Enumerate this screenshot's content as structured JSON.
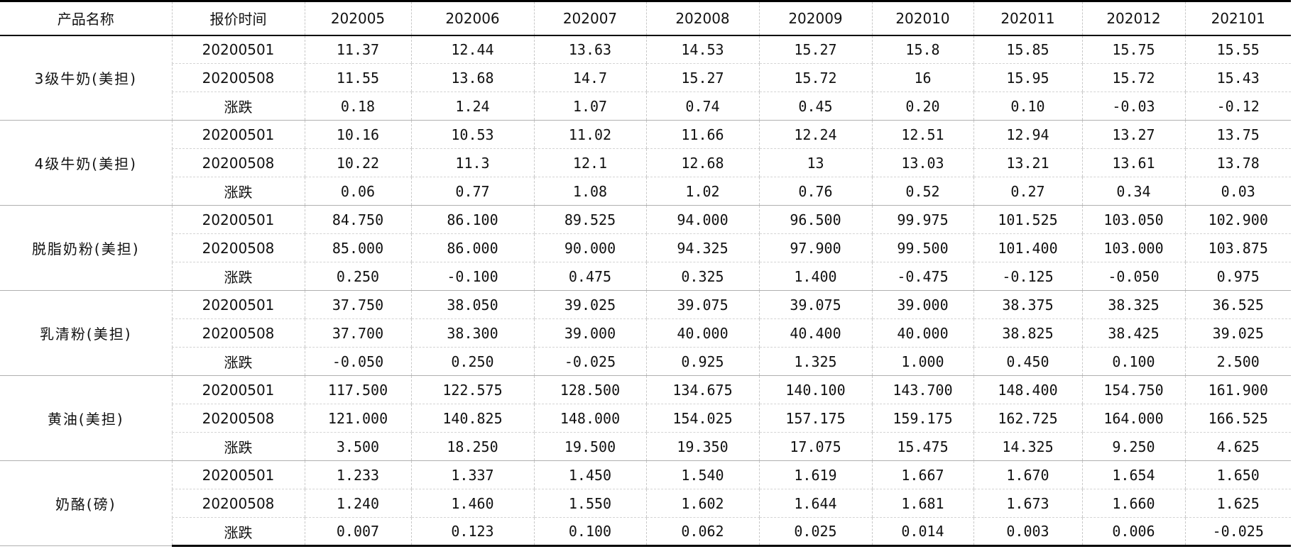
{
  "header": {
    "product_label": "产品名称",
    "time_label": "报价时间",
    "months": [
      "202005",
      "202006",
      "202007",
      "202008",
      "202009",
      "202010",
      "202011",
      "202012",
      "202101"
    ]
  },
  "groups": [
    {
      "product": "3级牛奶(美担)",
      "rows": [
        {
          "time": "20200501",
          "values": [
            "11.37",
            "12.44",
            "13.63",
            "14.53",
            "15.27",
            "15.8",
            "15.85",
            "15.75",
            "15.55"
          ]
        },
        {
          "time": "20200508",
          "values": [
            "11.55",
            "13.68",
            "14.7",
            "15.27",
            "15.72",
            "16",
            "15.95",
            "15.72",
            "15.43"
          ]
        },
        {
          "time": "涨跌",
          "values": [
            "0.18",
            "1.24",
            "1.07",
            "0.74",
            "0.45",
            "0.20",
            "0.10",
            "-0.03",
            "-0.12"
          ]
        }
      ]
    },
    {
      "product": "4级牛奶(美担)",
      "rows": [
        {
          "time": "20200501",
          "values": [
            "10.16",
            "10.53",
            "11.02",
            "11.66",
            "12.24",
            "12.51",
            "12.94",
            "13.27",
            "13.75"
          ]
        },
        {
          "time": "20200508",
          "values": [
            "10.22",
            "11.3",
            "12.1",
            "12.68",
            "13",
            "13.03",
            "13.21",
            "13.61",
            "13.78"
          ]
        },
        {
          "time": "涨跌",
          "values": [
            "0.06",
            "0.77",
            "1.08",
            "1.02",
            "0.76",
            "0.52",
            "0.27",
            "0.34",
            "0.03"
          ]
        }
      ]
    },
    {
      "product": "脱脂奶粉(美担)",
      "rows": [
        {
          "time": "20200501",
          "values": [
            "84.750",
            "86.100",
            "89.525",
            "94.000",
            "96.500",
            "99.975",
            "101.525",
            "103.050",
            "102.900"
          ]
        },
        {
          "time": "20200508",
          "values": [
            "85.000",
            "86.000",
            "90.000",
            "94.325",
            "97.900",
            "99.500",
            "101.400",
            "103.000",
            "103.875"
          ]
        },
        {
          "time": "涨跌",
          "values": [
            "0.250",
            "-0.100",
            "0.475",
            "0.325",
            "1.400",
            "-0.475",
            "-0.125",
            "-0.050",
            "0.975"
          ]
        }
      ]
    },
    {
      "product": "乳清粉(美担)",
      "rows": [
        {
          "time": "20200501",
          "values": [
            "37.750",
            "38.050",
            "39.025",
            "39.075",
            "39.075",
            "39.000",
            "38.375",
            "38.325",
            "36.525"
          ]
        },
        {
          "time": "20200508",
          "values": [
            "37.700",
            "38.300",
            "39.000",
            "40.000",
            "40.400",
            "40.000",
            "38.825",
            "38.425",
            "39.025"
          ]
        },
        {
          "time": "涨跌",
          "values": [
            "-0.050",
            "0.250",
            "-0.025",
            "0.925",
            "1.325",
            "1.000",
            "0.450",
            "0.100",
            "2.500"
          ]
        }
      ]
    },
    {
      "product": "黄油(美担)",
      "rows": [
        {
          "time": "20200501",
          "values": [
            "117.500",
            "122.575",
            "128.500",
            "134.675",
            "140.100",
            "143.700",
            "148.400",
            "154.750",
            "161.900"
          ]
        },
        {
          "time": "20200508",
          "values": [
            "121.000",
            "140.825",
            "148.000",
            "154.025",
            "157.175",
            "159.175",
            "162.725",
            "164.000",
            "166.525"
          ]
        },
        {
          "time": "涨跌",
          "values": [
            "3.500",
            "18.250",
            "19.500",
            "19.350",
            "17.075",
            "15.475",
            "14.325",
            "9.250",
            "4.625"
          ]
        }
      ]
    },
    {
      "product": "奶酪(磅)",
      "rows": [
        {
          "time": "20200501",
          "values": [
            "1.233",
            "1.337",
            "1.450",
            "1.540",
            "1.619",
            "1.667",
            "1.670",
            "1.654",
            "1.650"
          ]
        },
        {
          "time": "20200508",
          "values": [
            "1.240",
            "1.460",
            "1.550",
            "1.602",
            "1.644",
            "1.681",
            "1.673",
            "1.660",
            "1.625"
          ]
        },
        {
          "time": "涨跌",
          "values": [
            "0.007",
            "0.123",
            "0.100",
            "0.062",
            "0.025",
            "0.014",
            "0.003",
            "0.006",
            "-0.025"
          ]
        }
      ]
    }
  ]
}
